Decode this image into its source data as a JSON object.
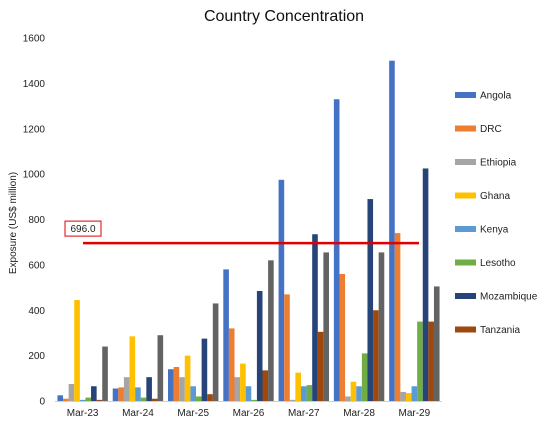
{
  "chart_data": {
    "type": "bar",
    "title": "Country Concentration",
    "xlabel": "",
    "ylabel": "Exposure (US$ million)",
    "ylim": [
      0,
      1600
    ],
    "yticks": [
      0,
      200,
      400,
      600,
      800,
      1000,
      1200,
      1400,
      1600
    ],
    "grid": false,
    "legend_position": "right",
    "categories": [
      "Mar-23",
      "Mar-24",
      "Mar-25",
      "Mar-26",
      "Mar-27",
      "Mar-28",
      "Mar-29"
    ],
    "series": [
      {
        "name": "Angola",
        "color": "#4472C4",
        "values": [
          25,
          55,
          140,
          580,
          975,
          1330,
          1500
        ]
      },
      {
        "name": "DRC",
        "color": "#ED7D31",
        "values": [
          10,
          60,
          150,
          320,
          470,
          560,
          740
        ]
      },
      {
        "name": "Ethiopia",
        "color": "#A5A5A5",
        "values": [
          75,
          105,
          105,
          105,
          5,
          20,
          40
        ]
      },
      {
        "name": "Ghana",
        "color": "#FFC000",
        "values": [
          445,
          285,
          200,
          165,
          125,
          85,
          35
        ]
      },
      {
        "name": "Kenya",
        "color": "#5B9BD5",
        "values": [
          5,
          60,
          65,
          65,
          65,
          65,
          65
        ]
      },
      {
        "name": "Lesotho",
        "color": "#70AD47",
        "values": [
          15,
          15,
          20,
          5,
          70,
          210,
          350
        ]
      },
      {
        "name": "Mozambique",
        "color": "#264478",
        "values": [
          65,
          105,
          275,
          485,
          735,
          890,
          1025
        ]
      },
      {
        "name": "Tanzania",
        "color": "#9E480E",
        "values": [
          5,
          10,
          30,
          135,
          305,
          400,
          350
        ]
      },
      {
        "name": "",
        "color": "#636363",
        "values": [
          240,
          290,
          430,
          620,
          655,
          655,
          505
        ]
      }
    ],
    "reference_line": {
      "value": 696.0,
      "label": "696.0",
      "color": "#E00000"
    }
  }
}
